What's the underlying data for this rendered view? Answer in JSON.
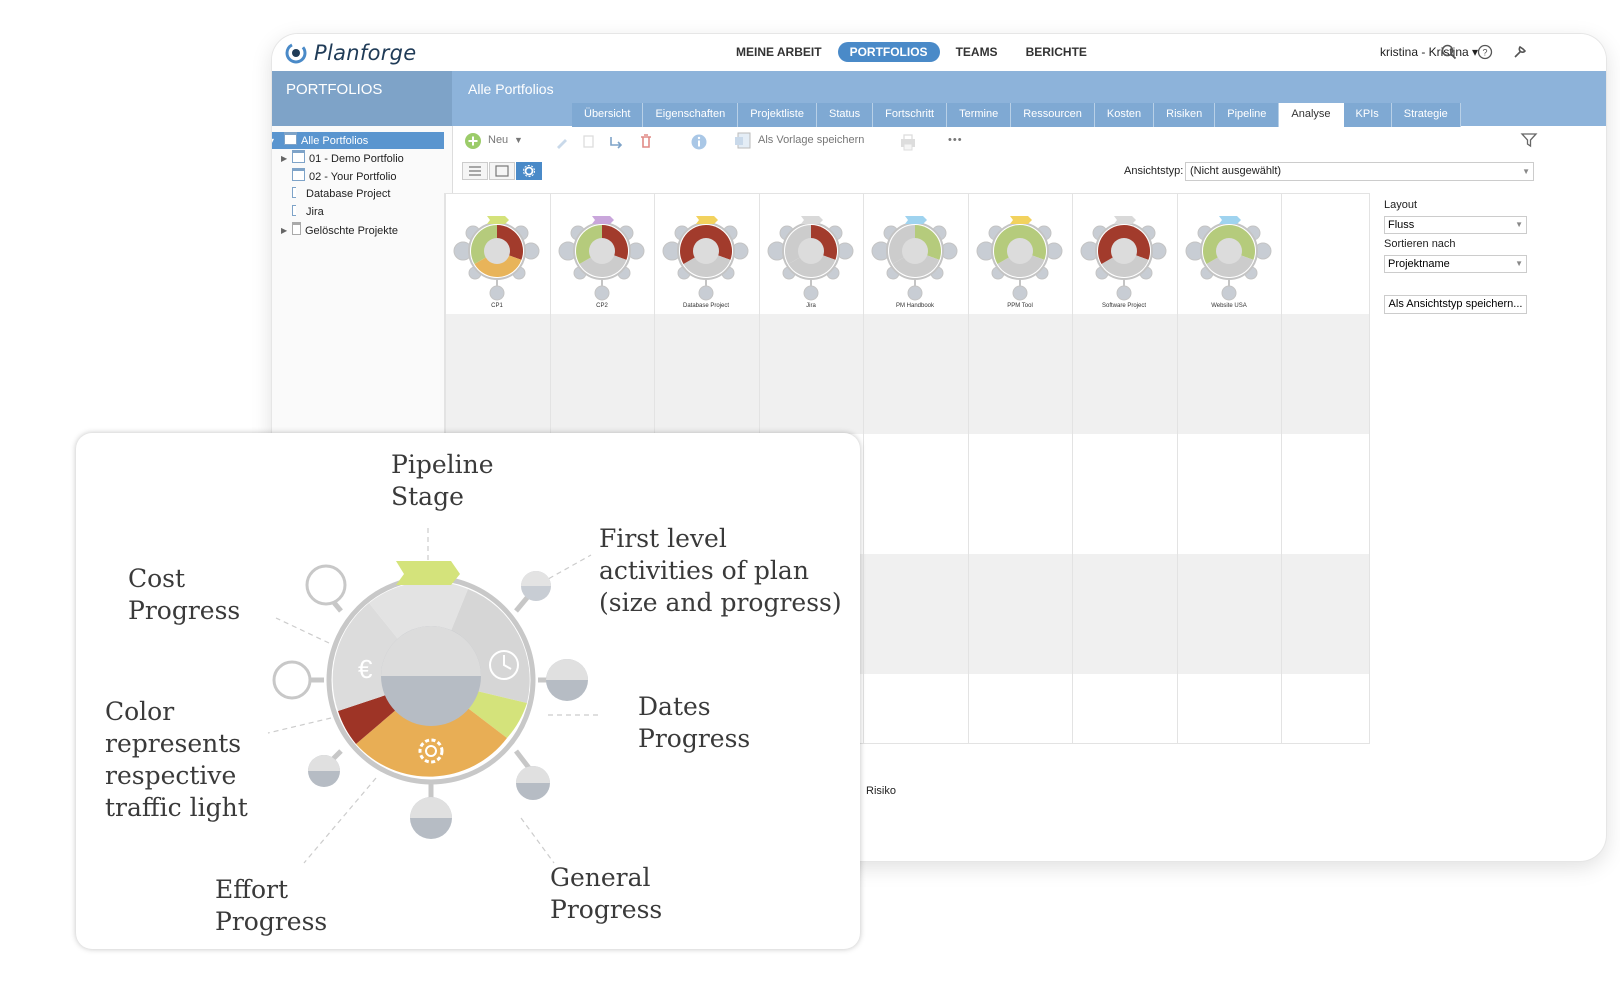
{
  "app": {
    "name": "Planforge"
  },
  "nav": {
    "items": [
      "MEINE ARBEIT",
      "PORTFOLIOS",
      "TEAMS",
      "BERICHTE"
    ],
    "active": "PORTFOLIOS",
    "user": "kristina - Kristina ▾"
  },
  "sidebar": {
    "title": "PORTFOLIOS",
    "tree": [
      {
        "label": "Alle Portfolios",
        "selected": true
      },
      {
        "label": "01 - Demo Portfolio"
      },
      {
        "label": "02 - Your Portfolio"
      },
      {
        "label": "Database Project"
      },
      {
        "label": "Jira"
      },
      {
        "label": "Gelöschte Projekte"
      }
    ]
  },
  "main": {
    "title": "Alle Portfolios",
    "tabs": [
      "Übersicht",
      "Eigenschaften",
      "Projektliste",
      "Status",
      "Fortschritt",
      "Termine",
      "Ressourcen",
      "Kosten",
      "Risiken",
      "Pipeline",
      "Analyse",
      "KPIs",
      "Strategie"
    ],
    "active_tab": "Analyse"
  },
  "toolbar": {
    "new_label": "Neu",
    "save_template_label": "Als Vorlage speichern",
    "more_label": "•••"
  },
  "view": {
    "type_label": "Ansichtstyp:",
    "type_value": "(Nicht ausgewählt)"
  },
  "projects": [
    {
      "name": "CP1",
      "stage_color": "#d4e27a",
      "segs": [
        "#a23b2c",
        "#e8b45a",
        "#b5cb7c"
      ]
    },
    {
      "name": "CP2",
      "stage_color": "#c9a6db",
      "segs": [
        "#a23b2c",
        "#cccccc",
        "#b5cb7c"
      ]
    },
    {
      "name": "Database Project",
      "stage_color": "#f2d25e",
      "segs": [
        "#a23b2c",
        "#cccccc",
        "#a23b2c"
      ]
    },
    {
      "name": "Jira",
      "stage_color": "#d9d9d9",
      "segs": [
        "#a23b2c",
        "#cccccc",
        "#cccccc"
      ]
    },
    {
      "name": "PM Handbook",
      "stage_color": "#9fd3ef",
      "segs": [
        "#b5cb7c",
        "#cccccc",
        "#cccccc"
      ]
    },
    {
      "name": "PPM Tool",
      "stage_color": "#f2d25e",
      "segs": [
        "#b5cb7c",
        "#cccccc",
        "#b5cb7c"
      ]
    },
    {
      "name": "Software Project",
      "stage_color": "#d9d9d9",
      "segs": [
        "#a23b2c",
        "#cccccc",
        "#a23b2c"
      ]
    },
    {
      "name": "Website USA",
      "stage_color": "#9fd3ef",
      "segs": [
        "#b5cb7c",
        "#cccccc",
        "#b5cb7c"
      ]
    }
  ],
  "right_panel": {
    "layout_label": "Layout",
    "layout_value": "Fluss",
    "sort_label": "Sortieren nach",
    "sort_value": "Projektname",
    "save_button": "Als Ansichtstyp speichern..."
  },
  "legend_row": {
    "risk_label": "Risiko"
  },
  "annotation": {
    "pipeline": "Pipeline\nStage",
    "cost": "Cost\nProgress",
    "activities": "First level\nactivities of plan\n(size and progress)",
    "dates": "Dates\nProgress",
    "color": "Color\nrepresents\nrespective\ntraffic light",
    "effort": "Effort\nProgress",
    "general": "General\nProgress"
  },
  "colors": {
    "accent": "#4a8ac8",
    "header": "#8db3da",
    "red": "#a23b2c",
    "amber": "#e8b45a",
    "green": "#cfe07a"
  }
}
